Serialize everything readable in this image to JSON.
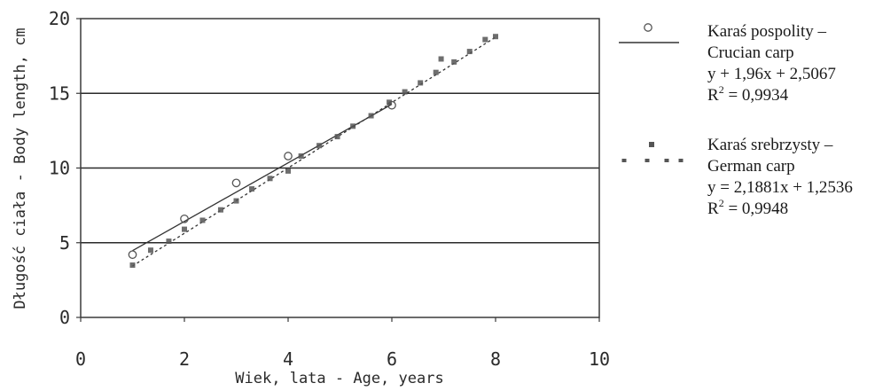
{
  "chart_data": {
    "type": "scatter",
    "xlabel": "Wiek, lata - Age, years",
    "ylabel": "Długość ciała - Body length, cm",
    "xlim": [
      0,
      10
    ],
    "ylim": [
      0,
      20
    ],
    "x_ticks": [
      0,
      2,
      4,
      6,
      8,
      10
    ],
    "y_ticks": [
      0,
      5,
      10,
      15,
      20
    ],
    "grid": "horizontal",
    "legend_position": "right",
    "series": [
      {
        "name_lines": [
          "Karaś pospolity –",
          "Crucian carp"
        ],
        "marker": "circle",
        "points": [
          {
            "x": 1.0,
            "y": 4.2
          },
          {
            "x": 2.0,
            "y": 6.6
          },
          {
            "x": 3.0,
            "y": 9.0
          },
          {
            "x": 4.0,
            "y": 10.8
          },
          {
            "x": 6.0,
            "y": 14.2
          }
        ],
        "trend": {
          "slope": 1.96,
          "intercept": 2.5067,
          "style": "solid",
          "equation_text": "y + 1,96x + 2,5067",
          "r2_value": "0,9934"
        }
      },
      {
        "name_lines": [
          "Karaś srebrzysty –",
          "German carp"
        ],
        "marker": "square",
        "points": [
          {
            "x": 1.0,
            "y": 3.5
          },
          {
            "x": 1.35,
            "y": 4.5
          },
          {
            "x": 1.7,
            "y": 5.1
          },
          {
            "x": 2.0,
            "y": 5.9
          },
          {
            "x": 2.35,
            "y": 6.5
          },
          {
            "x": 2.7,
            "y": 7.2
          },
          {
            "x": 3.0,
            "y": 7.8
          },
          {
            "x": 3.3,
            "y": 8.6
          },
          {
            "x": 3.65,
            "y": 9.3
          },
          {
            "x": 4.0,
            "y": 9.8
          },
          {
            "x": 4.25,
            "y": 10.8
          },
          {
            "x": 4.6,
            "y": 11.5
          },
          {
            "x": 4.95,
            "y": 12.1
          },
          {
            "x": 5.25,
            "y": 12.8
          },
          {
            "x": 5.6,
            "y": 13.5
          },
          {
            "x": 5.95,
            "y": 14.4
          },
          {
            "x": 6.25,
            "y": 15.1
          },
          {
            "x": 6.55,
            "y": 15.7
          },
          {
            "x": 6.85,
            "y": 16.4
          },
          {
            "x": 6.95,
            "y": 17.3
          },
          {
            "x": 7.2,
            "y": 17.1
          },
          {
            "x": 7.5,
            "y": 17.8
          },
          {
            "x": 7.8,
            "y": 18.6
          },
          {
            "x": 8.0,
            "y": 18.8
          }
        ],
        "trend": {
          "slope": 2.1881,
          "intercept": 1.2536,
          "style": "dashed",
          "equation_text": "y = 2,1881x + 1,2536",
          "r2_value": "0,9948"
        }
      }
    ],
    "r2_prefix": "R",
    "r2_superscript": "2",
    "r2_equals": " = "
  },
  "colors": {
    "ink": "#2a2a2a",
    "plot_border": "#3a3a3a",
    "gridline": "#2a2a2a",
    "marker": "#555555",
    "trend": "#333333"
  }
}
